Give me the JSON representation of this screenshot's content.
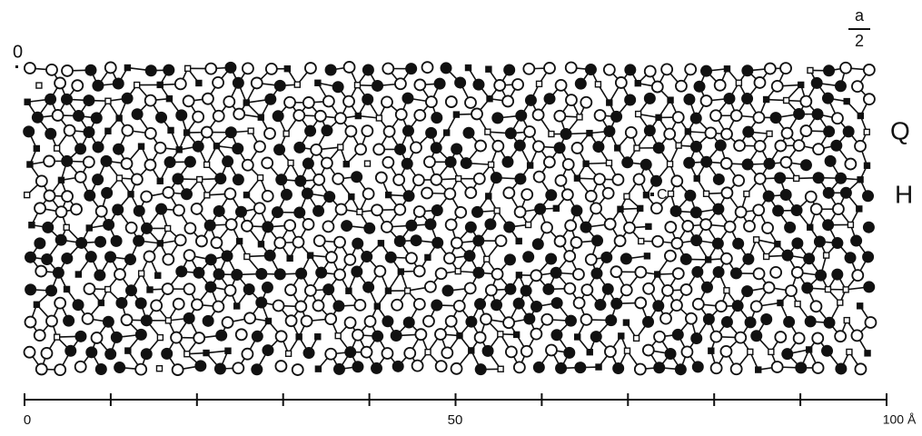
{
  "labels": {
    "origin": "0",
    "half_cell_numerator": "a",
    "half_cell_denominator": "2",
    "layer_q": "Q",
    "layer_h": "H",
    "site_c": "C"
  },
  "scale_bar": {
    "labels": [
      "0",
      "50",
      "100 Å"
    ]
  }
}
